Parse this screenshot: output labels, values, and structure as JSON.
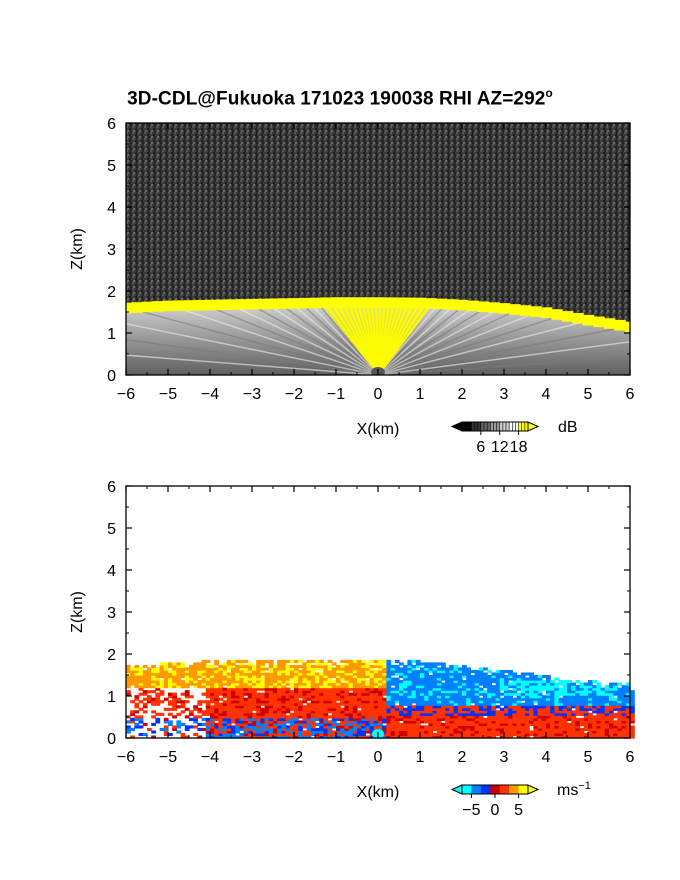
{
  "figure": {
    "title_main": "3D-CDL@Fukuoka 171023 190038 RHI AZ=292",
    "title_deg_mark": "o"
  },
  "chart_data": [
    {
      "type": "heatmap",
      "panel": "reflectivity",
      "xlabel": "X(km)",
      "ylabel": "Z(km)",
      "xlim": [
        -6,
        6
      ],
      "ylim": [
        0,
        6
      ],
      "x_ticks": [
        "-6",
        "-5",
        "-4",
        "-3",
        "-2",
        "-1",
        "0",
        "1",
        "2",
        "3",
        "4",
        "5",
        "6"
      ],
      "y_ticks": [
        "0",
        "1",
        "2",
        "3",
        "4",
        "5",
        "6"
      ],
      "grid": false,
      "colorbar": {
        "unit": "dB",
        "ticks": [
          "6",
          "12",
          "18"
        ],
        "range": [
          0,
          21
        ],
        "colors": [
          "#000000",
          "#333333",
          "#666666",
          "#999999",
          "#cccccc",
          "#ffffff",
          "#ffff00"
        ]
      },
      "layer_top_km": [
        [
          -6,
          1.65
        ],
        [
          -5,
          1.7
        ],
        [
          -4,
          1.72
        ],
        [
          -3,
          1.74
        ],
        [
          -2,
          1.76
        ],
        [
          -1,
          1.78
        ],
        [
          0,
          1.78
        ],
        [
          1,
          1.77
        ],
        [
          2,
          1.72
        ],
        [
          3,
          1.64
        ],
        [
          4,
          1.54
        ],
        [
          5,
          1.36
        ],
        [
          6,
          1.2
        ]
      ]
    },
    {
      "type": "heatmap",
      "panel": "doppler_velocity",
      "xlabel": "X(km)",
      "ylabel": "Z(km)",
      "xlim": [
        -6,
        6
      ],
      "ylim": [
        0,
        6
      ],
      "x_ticks": [
        "-6",
        "-5",
        "-4",
        "-3",
        "-2",
        "-1",
        "0",
        "1",
        "2",
        "3",
        "4",
        "5",
        "6"
      ],
      "y_ticks": [
        "0",
        "1",
        "2",
        "3",
        "4",
        "5",
        "6"
      ],
      "grid": false,
      "colorbar": {
        "unit": "ms",
        "unit_exponent": "−1",
        "ticks": [
          "−5",
          "0",
          "5"
        ],
        "range": [
          -7,
          7
        ],
        "colors": [
          "#00ffff",
          "#0080ff",
          "#0033ff",
          "#cc0000",
          "#ff3300",
          "#ff9900",
          "#ffff00"
        ]
      },
      "layer_top_km": [
        [
          -6,
          1.7
        ],
        [
          -5,
          1.75
        ],
        [
          -4,
          1.82
        ],
        [
          -3,
          1.84
        ],
        [
          -2,
          1.84
        ],
        [
          -1,
          1.84
        ],
        [
          0,
          1.82
        ],
        [
          1,
          1.8
        ],
        [
          2,
          1.72
        ],
        [
          3,
          1.6
        ],
        [
          4,
          1.46
        ],
        [
          5,
          1.34
        ],
        [
          6,
          1.26
        ]
      ],
      "velocity_regions": [
        {
          "x_range": [
            -6,
            0
          ],
          "z_range": [
            1.2,
            1.85
          ],
          "value_ms": 4
        },
        {
          "x_range": [
            -5,
            0.5
          ],
          "z_range": [
            0.3,
            1.2
          ],
          "value_ms": 1
        },
        {
          "x_range": [
            -4.5,
            -1
          ],
          "z_range": [
            0,
            0.5
          ],
          "value_ms": -3
        },
        {
          "x_range": [
            0,
            6
          ],
          "z_range": [
            0.8,
            1.8
          ],
          "value_ms": -4
        },
        {
          "x_range": [
            3,
            5.5
          ],
          "z_range": [
            1.0,
            1.3
          ],
          "value_ms": -6
        },
        {
          "x_range": [
            0.5,
            6
          ],
          "z_range": [
            0,
            0.8
          ],
          "value_ms": 1
        }
      ]
    }
  ]
}
